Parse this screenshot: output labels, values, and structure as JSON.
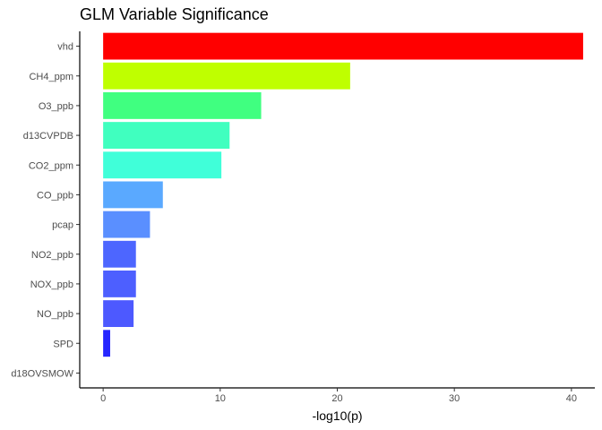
{
  "chart_data": {
    "type": "bar",
    "orientation": "horizontal",
    "title": "GLM Variable Significance",
    "xlabel": "-log10(p)",
    "ylabel": "",
    "xlim": [
      -2,
      42
    ],
    "xticks": [
      0,
      10,
      20,
      30,
      40
    ],
    "xtick_labels": [
      "0",
      "10",
      "20",
      "30",
      "40"
    ],
    "grid": false,
    "legend": "none",
    "categories": [
      "vhd",
      "CH4_ppm",
      "O3_ppb",
      "d13CVPDB",
      "CO2_ppm",
      "CO_ppb",
      "pcap",
      "NO2_ppb",
      "NOX_ppb",
      "NO_ppb",
      "SPD",
      "d18OVSMOW"
    ],
    "values": [
      41.0,
      21.1,
      13.5,
      10.8,
      10.1,
      5.1,
      4.0,
      2.8,
      2.8,
      2.6,
      0.6,
      0.0
    ],
    "colors": [
      "#FF0000",
      "#BFFF00",
      "#40FF80",
      "#40FFBF",
      "#40FFD9",
      "#5AA9FF",
      "#5A8FFF",
      "#4D66FF",
      "#4D5FFF",
      "#4D59FF",
      "#2626FF",
      "#0000FF"
    ]
  }
}
